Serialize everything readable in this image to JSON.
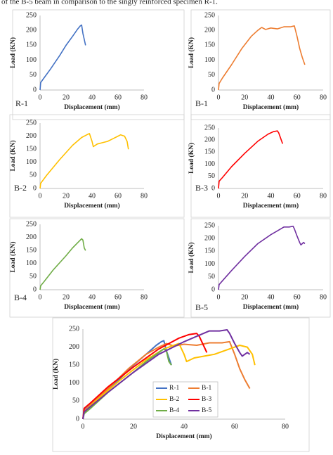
{
  "header_text": "of the B-5 beam in comparison to the singly reinforced specimen R-1.",
  "chart_data": [
    {
      "type": "line",
      "label": "R-1",
      "x_label": "Displacement (mm)",
      "y_label": "Load (KN)",
      "xlim": [
        0,
        80
      ],
      "xticks": [
        0,
        20,
        40,
        60,
        80
      ],
      "ylim": [
        0,
        250
      ],
      "yticks": [
        0,
        50,
        100,
        150,
        200,
        250
      ],
      "grid": false,
      "series": [
        {
          "name": "R-1",
          "color": "#4472c4",
          "x": [
            0,
            0.5,
            3,
            8,
            15,
            20,
            25,
            29,
            31,
            32,
            33,
            34,
            35
          ],
          "values": [
            0,
            25,
            40,
            70,
            115,
            150,
            180,
            205,
            215,
            218,
            190,
            170,
            150
          ]
        }
      ]
    },
    {
      "type": "line",
      "label": "B-1",
      "x_label": "Displacement (mm)",
      "y_label": "Load (KN)",
      "xlim": [
        0,
        80
      ],
      "xticks": [
        0,
        20,
        40,
        60,
        80
      ],
      "ylim": [
        0,
        250
      ],
      "yticks": [
        0,
        50,
        100,
        150,
        200,
        250
      ],
      "grid": false,
      "series": [
        {
          "name": "B-1",
          "color": "#ed7d31",
          "x": [
            0,
            0.5,
            3,
            10,
            18,
            25,
            30,
            33,
            36,
            40,
            45,
            50,
            55,
            58,
            60,
            62,
            64,
            66
          ],
          "values": [
            0,
            22,
            40,
            85,
            140,
            180,
            200,
            210,
            203,
            208,
            205,
            212,
            212,
            215,
            180,
            140,
            110,
            85
          ]
        }
      ]
    },
    {
      "type": "line",
      "label": "B-2",
      "x_label": "Displacement (mm)",
      "y_label": "Load (KN)",
      "xlim": [
        0,
        80
      ],
      "xticks": [
        0,
        20,
        40,
        60,
        80
      ],
      "ylim": [
        0,
        250
      ],
      "yticks": [
        0,
        50,
        100,
        150,
        200,
        250
      ],
      "grid": false,
      "series": [
        {
          "name": "B-2",
          "color": "#ffc000",
          "x": [
            0,
            0.5,
            5,
            15,
            25,
            32,
            36,
            38,
            40,
            41,
            44,
            48,
            52,
            56,
            60,
            62,
            65,
            67,
            68
          ],
          "values": [
            0,
            20,
            50,
            110,
            165,
            195,
            205,
            210,
            180,
            160,
            170,
            175,
            180,
            190,
            200,
            205,
            200,
            180,
            150
          ]
        }
      ]
    },
    {
      "type": "line",
      "label": "B-3",
      "x_label": "Displacement (mm)",
      "y_label": "Load (KN)",
      "xlim": [
        0,
        80
      ],
      "xticks": [
        0,
        20,
        40,
        60,
        80
      ],
      "ylim": [
        0,
        250
      ],
      "yticks": [
        0,
        50,
        100,
        150,
        200,
        250
      ],
      "grid": false,
      "series": [
        {
          "name": "B-3",
          "color": "#ff0000",
          "x": [
            0,
            0.5,
            3,
            10,
            20,
            30,
            38,
            42,
            45,
            46,
            48,
            49
          ],
          "values": [
            0,
            30,
            45,
            90,
            145,
            195,
            225,
            235,
            238,
            230,
            200,
            185
          ]
        }
      ]
    },
    {
      "type": "line",
      "label": "B-4",
      "x_label": "Displacement (mm)",
      "y_label": "Load (KN)",
      "xlim": [
        0,
        80
      ],
      "xticks": [
        0,
        20,
        40,
        60,
        80
      ],
      "ylim": [
        0,
        250
      ],
      "yticks": [
        0,
        50,
        100,
        150,
        200,
        250
      ],
      "grid": false,
      "series": [
        {
          "name": "B-4",
          "color": "#70ad47",
          "x": [
            0,
            0.5,
            3,
            10,
            20,
            25,
            30,
            32,
            33,
            34,
            35
          ],
          "values": [
            0,
            15,
            30,
            75,
            130,
            160,
            185,
            195,
            190,
            160,
            150
          ]
        }
      ]
    },
    {
      "type": "line",
      "label": "B-5",
      "x_label": "Displacement (mm)",
      "y_label": "Load (KN)",
      "xlim": [
        0,
        80
      ],
      "xticks": [
        0,
        20,
        40,
        60,
        80
      ],
      "ylim": [
        0,
        250
      ],
      "yticks": [
        0,
        50,
        100,
        150,
        200,
        250
      ],
      "grid": false,
      "series": [
        {
          "name": "B-5",
          "color": "#7030a0",
          "x": [
            0,
            0.5,
            3,
            10,
            20,
            30,
            40,
            45,
            50,
            54,
            57,
            58,
            60,
            62,
            63,
            64,
            65,
            66
          ],
          "values": [
            0,
            20,
            35,
            75,
            130,
            180,
            215,
            230,
            245,
            245,
            248,
            238,
            210,
            185,
            175,
            180,
            185,
            180
          ]
        }
      ]
    },
    {
      "type": "line",
      "x_label": "Displacement (mm)",
      "y_label": "Load (KN)",
      "xlim": [
        0,
        80
      ],
      "xticks": [
        0,
        20,
        40,
        60,
        80
      ],
      "ylim": [
        0,
        250
      ],
      "yticks": [
        0,
        50,
        100,
        150,
        200,
        250
      ],
      "grid": false,
      "legend": "lower center",
      "series": [
        {
          "name": "R-1",
          "color": "#4472c4",
          "x": [
            0,
            0.5,
            3,
            8,
            15,
            20,
            25,
            29,
            31,
            32,
            33,
            34,
            35
          ],
          "values": [
            0,
            25,
            40,
            70,
            115,
            150,
            180,
            205,
            215,
            218,
            190,
            170,
            150
          ]
        },
        {
          "name": "B-1",
          "color": "#ed7d31",
          "x": [
            0,
            0.5,
            3,
            10,
            18,
            25,
            30,
            33,
            36,
            40,
            45,
            50,
            55,
            58,
            60,
            62,
            64,
            66
          ],
          "values": [
            0,
            22,
            40,
            85,
            140,
            180,
            200,
            210,
            203,
            208,
            205,
            212,
            212,
            215,
            180,
            140,
            110,
            85
          ]
        },
        {
          "name": "B-2",
          "color": "#ffc000",
          "x": [
            0,
            0.5,
            5,
            15,
            25,
            32,
            36,
            38,
            40,
            41,
            44,
            48,
            52,
            56,
            60,
            62,
            65,
            67,
            68
          ],
          "values": [
            0,
            20,
            50,
            110,
            165,
            195,
            205,
            210,
            180,
            160,
            170,
            175,
            180,
            190,
            200,
            205,
            200,
            180,
            150
          ]
        },
        {
          "name": "B-3",
          "color": "#ff0000",
          "x": [
            0,
            0.5,
            3,
            10,
            20,
            30,
            38,
            42,
            45,
            46,
            48,
            49
          ],
          "values": [
            0,
            30,
            45,
            90,
            145,
            195,
            225,
            235,
            238,
            230,
            200,
            185
          ]
        },
        {
          "name": "B-4",
          "color": "#70ad47",
          "x": [
            0,
            0.5,
            3,
            10,
            20,
            25,
            30,
            32,
            33,
            34,
            35
          ],
          "values": [
            0,
            15,
            30,
            75,
            130,
            160,
            185,
            195,
            190,
            160,
            150
          ]
        },
        {
          "name": "B-5",
          "color": "#7030a0",
          "x": [
            0,
            0.5,
            3,
            10,
            20,
            30,
            40,
            45,
            50,
            54,
            57,
            58,
            60,
            62,
            63,
            64,
            65,
            66
          ],
          "values": [
            0,
            20,
            35,
            75,
            130,
            180,
            215,
            230,
            245,
            245,
            248,
            238,
            210,
            185,
            175,
            180,
            185,
            180
          ]
        }
      ]
    }
  ]
}
